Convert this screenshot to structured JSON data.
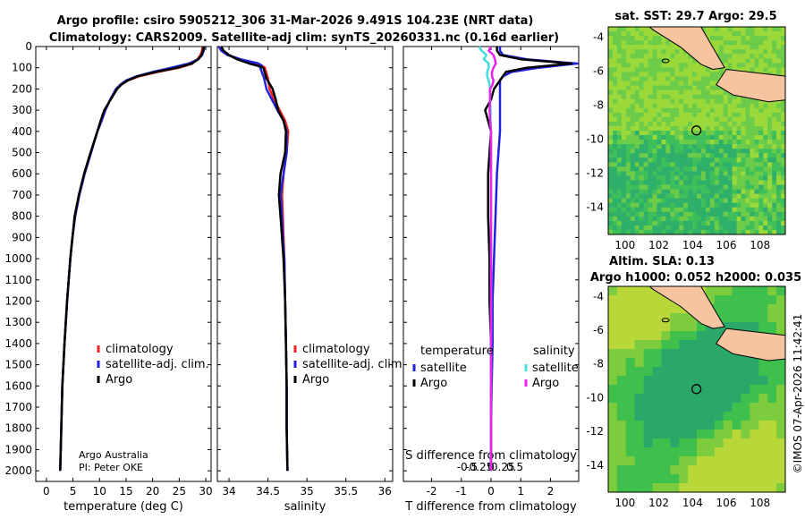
{
  "header": {
    "line1": "Argo profile: csiro 5905212_306 31-Mar-2026 9.491S 104.23E (NRT data)",
    "line2": "Climatology: CARS2009. Satellite-adj clim: synTS_20260331.nc (0.16d earlier)"
  },
  "colors": {
    "climatology": "#ee2222",
    "satellite_adj": "#2222dd",
    "argo": "#000000",
    "sal_satellite": "#44dddd",
    "sal_argo": "#ee22ee",
    "land": "#f6c49e"
  },
  "depth_axis": {
    "ticks": [
      0,
      100,
      200,
      300,
      400,
      500,
      600,
      700,
      800,
      900,
      1000,
      1100,
      1200,
      1300,
      1400,
      1500,
      1600,
      1700,
      1800,
      1900,
      2000
    ],
    "ylim": [
      0,
      2050
    ]
  },
  "chart_data": [
    {
      "id": "temperature",
      "type": "line",
      "xlabel": "temperature (deg C)",
      "xlim": [
        -2,
        31
      ],
      "xticks": [
        0,
        5,
        10,
        15,
        20,
        25,
        30
      ],
      "legend": [
        "climatology",
        "satellite-adj. clim.",
        "Argo"
      ],
      "depth": [
        0,
        20,
        40,
        60,
        80,
        100,
        120,
        140,
        160,
        180,
        200,
        250,
        300,
        350,
        400,
        500,
        600,
        700,
        800,
        900,
        1000,
        1200,
        1400,
        1600,
        1800,
        2000
      ],
      "series": [
        {
          "name": "climatology",
          "values": [
            29.4,
            29.3,
            29.0,
            28.4,
            27.5,
            25.0,
            21.0,
            17.5,
            15.3,
            14.0,
            13.2,
            12.0,
            11.1,
            10.4,
            9.6,
            8.4,
            7.2,
            6.2,
            5.4,
            4.9,
            4.5,
            3.9,
            3.4,
            3.0,
            2.8,
            2.6
          ]
        },
        {
          "name": "satellite-adj. clim.",
          "values": [
            29.7,
            29.6,
            29.3,
            28.6,
            26.8,
            23.5,
            20.0,
            17.0,
            15.0,
            13.9,
            13.1,
            12.0,
            11.1,
            10.4,
            9.6,
            8.4,
            7.2,
            6.2,
            5.4,
            4.9,
            4.5,
            3.9,
            3.4,
            3.0,
            2.8,
            2.6
          ]
        },
        {
          "name": "Argo",
          "values": [
            29.6,
            29.5,
            29.2,
            28.6,
            27.4,
            24.6,
            20.6,
            17.2,
            15.3,
            14.1,
            13.3,
            12.1,
            10.9,
            10.2,
            9.6,
            8.3,
            7.1,
            6.1,
            5.3,
            4.9,
            4.5,
            3.9,
            3.4,
            3.0,
            2.8,
            2.6
          ]
        }
      ]
    },
    {
      "id": "salinity",
      "type": "line",
      "xlabel": "salinity",
      "xlim": [
        33.85,
        36.1
      ],
      "xticks": [
        34,
        34.5,
        35,
        35.5,
        36
      ],
      "xticklabels": [
        "34",
        "34.5",
        "35",
        "35.5",
        "36"
      ],
      "legend": [
        "climatology",
        "satellite-adj. clim.",
        "Argo"
      ],
      "depth": [
        0,
        20,
        40,
        60,
        80,
        90,
        100,
        150,
        200,
        250,
        300,
        350,
        400,
        500,
        600,
        700,
        800,
        900,
        1000,
        1200,
        1400,
        1600,
        1800,
        2000
      ],
      "series": [
        {
          "name": "climatology",
          "values": [
            33.88,
            33.92,
            34.0,
            34.12,
            34.3,
            34.42,
            34.46,
            34.5,
            34.52,
            34.58,
            34.65,
            34.72,
            34.76,
            34.74,
            34.7,
            34.68,
            34.69,
            34.7,
            34.71,
            34.72,
            34.73,
            34.74,
            34.74,
            34.75
          ]
        },
        {
          "name": "satellite-adj. clim.",
          "values": [
            33.87,
            33.9,
            33.98,
            34.15,
            34.38,
            34.42,
            34.4,
            34.45,
            34.48,
            34.55,
            34.62,
            34.7,
            34.74,
            34.74,
            34.7,
            34.66,
            34.68,
            34.69,
            34.71,
            34.72,
            34.73,
            34.74,
            34.74,
            34.75
          ]
        },
        {
          "name": "Argo",
          "values": [
            33.9,
            33.93,
            34.0,
            34.1,
            34.26,
            34.36,
            34.44,
            34.48,
            34.56,
            34.6,
            34.63,
            34.7,
            34.73,
            34.72,
            34.66,
            34.64,
            34.66,
            34.68,
            34.7,
            34.72,
            34.73,
            34.74,
            34.74,
            34.75
          ]
        }
      ]
    },
    {
      "id": "difference",
      "type": "line",
      "xlabel": "T difference from climatology",
      "xlabel_top": "S difference from climatology",
      "xlim": [
        -2.95,
        2.95
      ],
      "xticks": [
        -2,
        -1,
        0,
        1,
        2
      ],
      "s_ticks": [
        -0.5,
        -0.25,
        0,
        0.25,
        0.5
      ],
      "s_ticklabels": [
        "-0.5",
        "-0.25",
        "0",
        "0.25",
        "0.5"
      ],
      "legend_temperature_title": "temperature",
      "legend_salinity_title": "salinity",
      "legend_temperature": [
        "satellite",
        "Argo"
      ],
      "legend_salinity": [
        "satellite",
        "Argo"
      ],
      "depth": [
        0,
        20,
        40,
        60,
        80,
        100,
        120,
        140,
        160,
        180,
        200,
        250,
        300,
        350,
        400,
        500,
        600,
        800,
        1000,
        1200,
        1400,
        1600,
        1800,
        2000
      ],
      "series": [
        {
          "name": "T satellite",
          "values": [
            0.3,
            0.3,
            0.4,
            1.2,
            2.9,
            1.6,
            0.7,
            0.4,
            0.3,
            0.3,
            0.3,
            0.3,
            0.3,
            0.3,
            0.3,
            0.25,
            0.2,
            0.15,
            0.1,
            0.05,
            0.05,
            0.02,
            0.0,
            0.0
          ]
        },
        {
          "name": "T Argo",
          "values": [
            0.2,
            0.2,
            0.3,
            1.0,
            2.7,
            1.2,
            0.5,
            0.4,
            0.3,
            0.2,
            0.1,
            0.0,
            -0.2,
            -0.1,
            0.0,
            -0.05,
            -0.1,
            -0.1,
            -0.05,
            -0.05,
            0.0,
            0.0,
            0.0,
            0.0
          ]
        },
        {
          "name": "S satellite",
          "values": [
            -0.25,
            -0.2,
            -0.1,
            -0.15,
            -0.05,
            -0.05,
            -0.08,
            -0.08,
            -0.05,
            -0.03,
            -0.02,
            -0.02,
            -0.01,
            -0.01,
            0.0,
            0.0,
            0.0,
            0.0,
            0.0,
            0.0,
            0.0,
            0.0,
            0.0,
            0.0
          ]
        },
        {
          "name": "S Argo",
          "values": [
            0.0,
            -0.05,
            0.05,
            0.08,
            0.1,
            0.05,
            0.02,
            0.02,
            0.05,
            0.03,
            -0.02,
            -0.02,
            -0.03,
            -0.02,
            0.0,
            0.0,
            0.0,
            0.0,
            0.0,
            0.0,
            0.0,
            0.0,
            0.0,
            0.0
          ]
        }
      ]
    },
    {
      "id": "sst_map",
      "type": "heatmap",
      "title": "sat. SST: 29.7 Argo: 29.5",
      "xlim": [
        99,
        109.5
      ],
      "ylim": [
        -15.6,
        -3.4
      ],
      "xticks": [
        100,
        102,
        104,
        106,
        108
      ],
      "yticks": [
        -4,
        -6,
        -8,
        -10,
        -12,
        -14
      ],
      "argo_lon": 104.23,
      "argo_lat": -9.49
    },
    {
      "id": "sla_map",
      "type": "heatmap",
      "title": "Altim. SLA: 0.13",
      "subtitle": "Argo h1000: 0.052 h2000: 0.035",
      "xlim": [
        99,
        109.5
      ],
      "ylim": [
        -15.6,
        -3.4
      ],
      "xticks": [
        100,
        102,
        104,
        106,
        108
      ],
      "yticks": [
        -4,
        -6,
        -8,
        -10,
        -12,
        -14
      ],
      "argo_lon": 104.23,
      "argo_lat": -9.49
    }
  ],
  "annotations": {
    "institution": "Argo Australia",
    "pi": "PI: Peter OKE",
    "credit": "©IMOS 07-Apr-2026 11:42:41"
  }
}
